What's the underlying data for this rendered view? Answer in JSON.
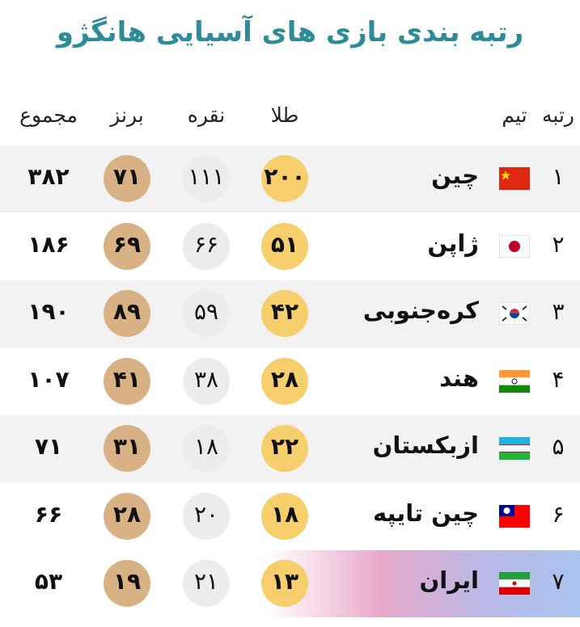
{
  "title": "رتبه بندی بازی های آسیایی هانگژو",
  "table": {
    "header": [
      "رتبه",
      "تیم",
      "طلا",
      "نقره",
      "برنز",
      "مجموع"
    ],
    "rows": [
      [
        "۱",
        "چین",
        "۲۰۰",
        "۱۱۱",
        "۷۱",
        "۳۸۲"
      ],
      [
        "۲",
        "ژاپن",
        "۵۱",
        "۶۶",
        "۶۹",
        "۱۸۶"
      ],
      [
        "۳",
        "کره‌جنوبی",
        "۴۲",
        "۵۹",
        "۸۹",
        "۱۹۰"
      ],
      [
        "۴",
        "هند",
        "۲۸",
        "۳۸",
        "۴۱",
        "۱۰۷"
      ],
      [
        "۵",
        "ازبکستان",
        "۲۲",
        "۱۸",
        "۳۱",
        "۷۱"
      ],
      [
        "۶",
        "چین تایپه",
        "۱۸",
        "۲۰",
        "۲۸",
        "۶۶"
      ],
      [
        "۷",
        "ایران",
        "۱۳",
        "۲۱",
        "۱۹",
        "۵۳"
      ]
    ]
  }
}
